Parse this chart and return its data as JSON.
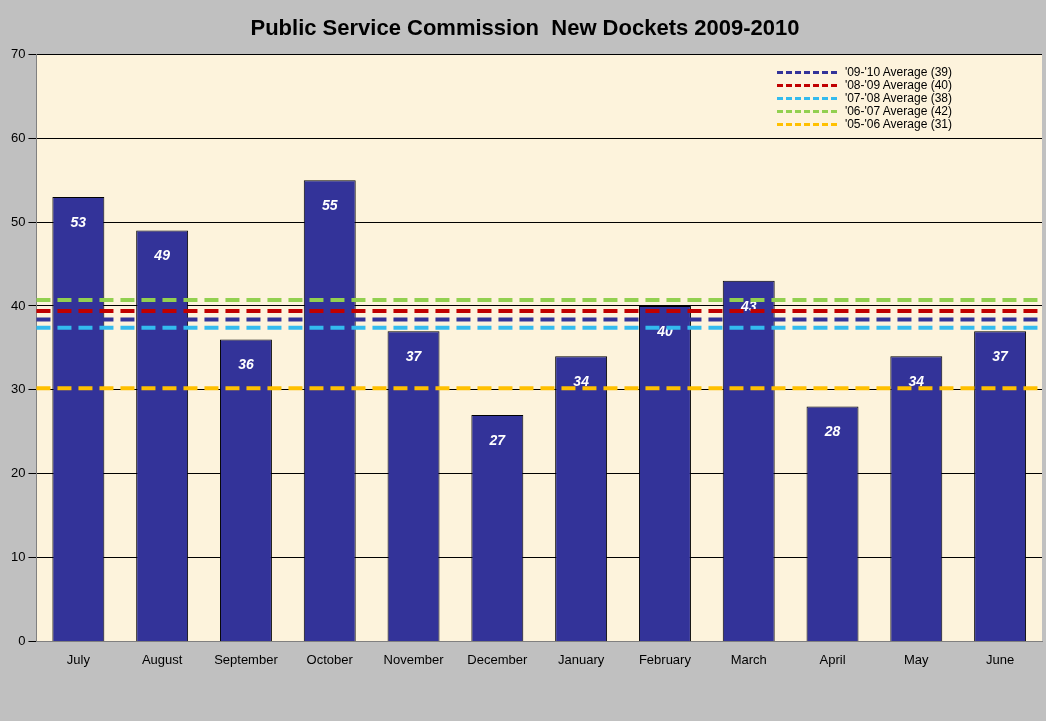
{
  "chart_data": {
    "type": "bar",
    "title": "Public Service Commission  New Dockets 2009-2010",
    "categories": [
      "July",
      "August",
      "September",
      "October",
      "November",
      "December",
      "January",
      "February",
      "March",
      "April",
      "May",
      "June"
    ],
    "values": [
      53,
      49,
      36,
      55,
      37,
      27,
      34,
      40,
      43,
      28,
      34,
      37
    ],
    "color": "#333399",
    "ylim": [
      0,
      70
    ],
    "yticks": [
      0,
      10,
      20,
      30,
      40,
      50,
      60,
      70
    ],
    "grid": "y",
    "data_labels": true,
    "legend": "top right",
    "ref_lines": [
      {
        "axis": "y",
        "value": 38.4,
        "label": "'09-'10 Average (39)",
        "color": "#333399",
        "line_style": "dashed"
      },
      {
        "axis": "y",
        "value": 39.4,
        "label": "'08-'09 Average (40)",
        "color": "#c00000",
        "line_style": "dashed"
      },
      {
        "axis": "y",
        "value": 37.4,
        "label": "'07-'08 Average (38)",
        "color": "#33bbee",
        "line_style": "dashed"
      },
      {
        "axis": "y",
        "value": 40.7,
        "label": "'06-'07 Average (42)",
        "color": "#92d050",
        "line_style": "dashed"
      },
      {
        "axis": "y",
        "value": 30.2,
        "label": "'05-'06 Average (31)",
        "color": "#ffc000",
        "line_style": "dashed"
      }
    ]
  }
}
